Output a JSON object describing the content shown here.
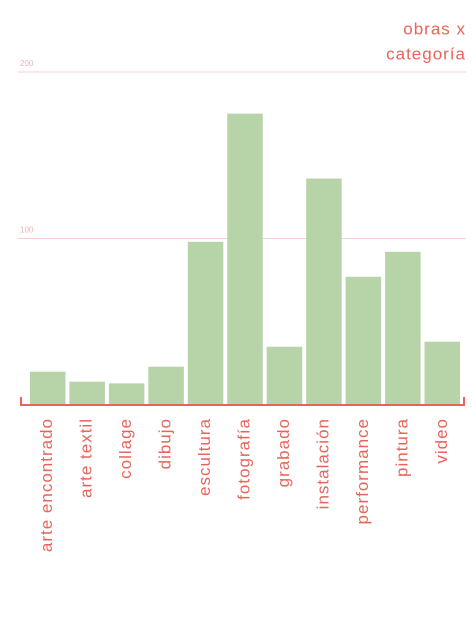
{
  "chart_data": {
    "type": "bar",
    "title": [
      "obras x",
      "categoría"
    ],
    "categories": [
      "arte encontrado",
      "arte textil",
      "collage",
      "dibujo",
      "escultura",
      "fotografía",
      "grabado",
      "instalación",
      "performance",
      "pintura",
      "video"
    ],
    "values": [
      20,
      14,
      13,
      23,
      98,
      175,
      35,
      136,
      77,
      92,
      38
    ],
    "color": "#b7d4a8",
    "ylim": [
      0,
      200
    ],
    "yticks": [
      100,
      200
    ],
    "grid": true
  }
}
